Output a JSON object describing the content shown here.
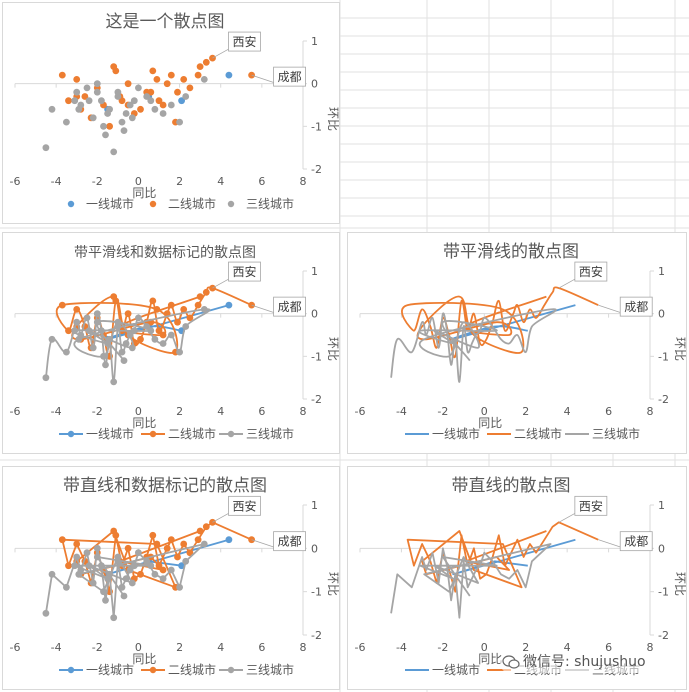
{
  "charts": [
    {
      "title": "这是一个散点图",
      "style": "markers"
    },
    {
      "title": "带平滑线和数据标记的散点图",
      "style": "smooth-markers"
    },
    {
      "title": "带平滑线的散点图",
      "style": "smooth"
    },
    {
      "title": "带直线和数据标记的散点图",
      "style": "straight-markers"
    },
    {
      "title": "带直线的散点图",
      "style": "straight"
    }
  ],
  "chart_data": {
    "type": "scatter",
    "xlabel": "同比",
    "ylabel": "环比",
    "xlim": [
      -6,
      8
    ],
    "ylim": [
      -2,
      1
    ],
    "xticks": [
      -6,
      -4,
      -2,
      0,
      2,
      4,
      6,
      8
    ],
    "yticks": [
      -2,
      -1,
      0,
      1
    ],
    "tick_labels_x": [
      "-6",
      "-4",
      "-2",
      "0",
      "2",
      "4",
      "6",
      "8"
    ],
    "tick_labels_y": [
      "-2",
      "-1",
      "0",
      "1"
    ],
    "legend_position": "bottom",
    "annotations": [
      {
        "text": "西安",
        "x": 3.6,
        "y": 0.6
      },
      {
        "text": "成都",
        "x": 5.5,
        "y": 0.2
      }
    ],
    "series": [
      {
        "name": "一线城市",
        "color": "#5b9bd5",
        "x": [
          4.4,
          -1.5,
          0.5,
          2.1
        ],
        "y": [
          0.2,
          -0.6,
          -0.3,
          -0.4
        ]
      },
      {
        "name": "二线城市",
        "color": "#ed7d31",
        "x": [
          5.5,
          3.6,
          3.3,
          2.9,
          2.5,
          2.2,
          1.9,
          1.6,
          1.4,
          1.0,
          0.7,
          0.4,
          0.1,
          -0.2,
          -0.5,
          -0.8,
          -1.1,
          -1.4,
          -1.7,
          -2.0,
          -2.3,
          -2.6,
          -3.0,
          -3.4,
          -3.7,
          0.9,
          1.8,
          -0.5,
          -1.2,
          -3.0,
          -2.8,
          0.6,
          1.2,
          -0.9,
          3.0
        ],
        "y": [
          0.2,
          0.6,
          0.5,
          0.2,
          -0.1,
          0.1,
          -0.2,
          0.2,
          0.0,
          -0.4,
          0.3,
          -0.2,
          -0.6,
          -0.7,
          0.0,
          -0.4,
          0.3,
          -1.0,
          -0.5,
          -0.1,
          -0.8,
          -0.3,
          0.1,
          -0.4,
          0.2,
          0.1,
          -0.9,
          -0.5,
          0.4,
          -0.3,
          -0.6,
          -0.2,
          -0.5,
          -0.3,
          0.4
        ]
      },
      {
        "name": "三线城市",
        "color": "#a5a5a5",
        "x": [
          -4.5,
          -4.2,
          -3.5,
          -3.0,
          -2.8,
          -2.5,
          -2.2,
          -2.0,
          -1.8,
          -1.6,
          -1.4,
          -1.2,
          -1.0,
          -0.8,
          -0.6,
          -0.4,
          -0.2,
          0.0,
          0.4,
          0.8,
          1.2,
          1.6,
          2.0,
          2.3,
          3.2,
          -2.9,
          -1.7,
          -1.0,
          -0.3,
          -2.4,
          -1.5,
          -3.1,
          0.6,
          -2.0,
          -0.7
        ],
        "y": [
          -1.5,
          -0.6,
          -0.9,
          -0.2,
          -0.5,
          -0.1,
          -0.8,
          0.0,
          -0.4,
          -1.2,
          -0.6,
          -1.6,
          -0.3,
          -0.9,
          -0.7,
          -0.5,
          -0.4,
          -0.1,
          -0.3,
          -0.6,
          -0.7,
          -0.5,
          -0.9,
          -0.3,
          0.1,
          -0.6,
          -1.0,
          -0.2,
          -0.8,
          -0.4,
          -0.7,
          -0.4,
          -0.4,
          -0.2,
          -1.1
        ]
      }
    ]
  },
  "watermark": {
    "text": "微信号: shujushuo"
  }
}
